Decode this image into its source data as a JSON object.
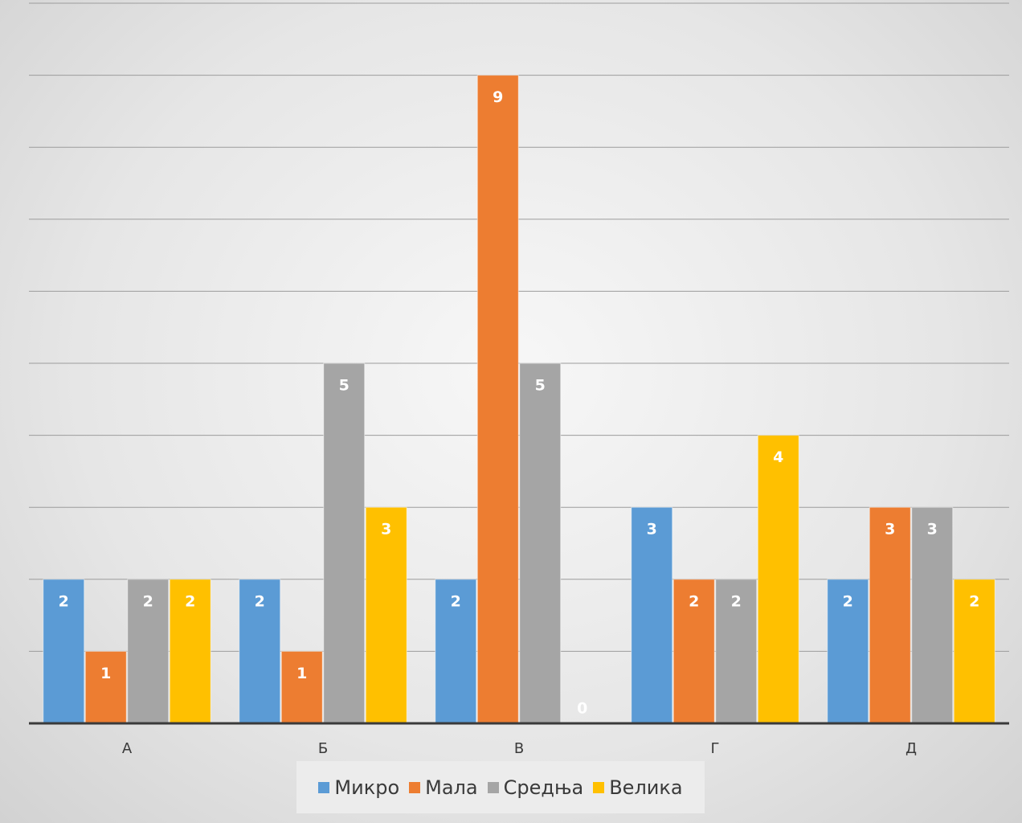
{
  "chart_data": {
    "type": "bar",
    "categories": [
      "А",
      "Б",
      "В",
      "Г",
      "Д"
    ],
    "series": [
      {
        "name": "Микро",
        "color": "#5b9bd5",
        "values": [
          2,
          2,
          2,
          3,
          2
        ]
      },
      {
        "name": "Мала",
        "color": "#ed7d31",
        "values": [
          1,
          1,
          9,
          2,
          3
        ]
      },
      {
        "name": "Средња",
        "color": "#a5a5a5",
        "values": [
          2,
          5,
          5,
          2,
          3
        ]
      },
      {
        "name": "Велика",
        "color": "#ffc000",
        "values": [
          2,
          3,
          0,
          4,
          2
        ]
      }
    ],
    "ylim": [
      0,
      10
    ],
    "grid": true,
    "data_labels": true,
    "legend_position": "bottom"
  }
}
